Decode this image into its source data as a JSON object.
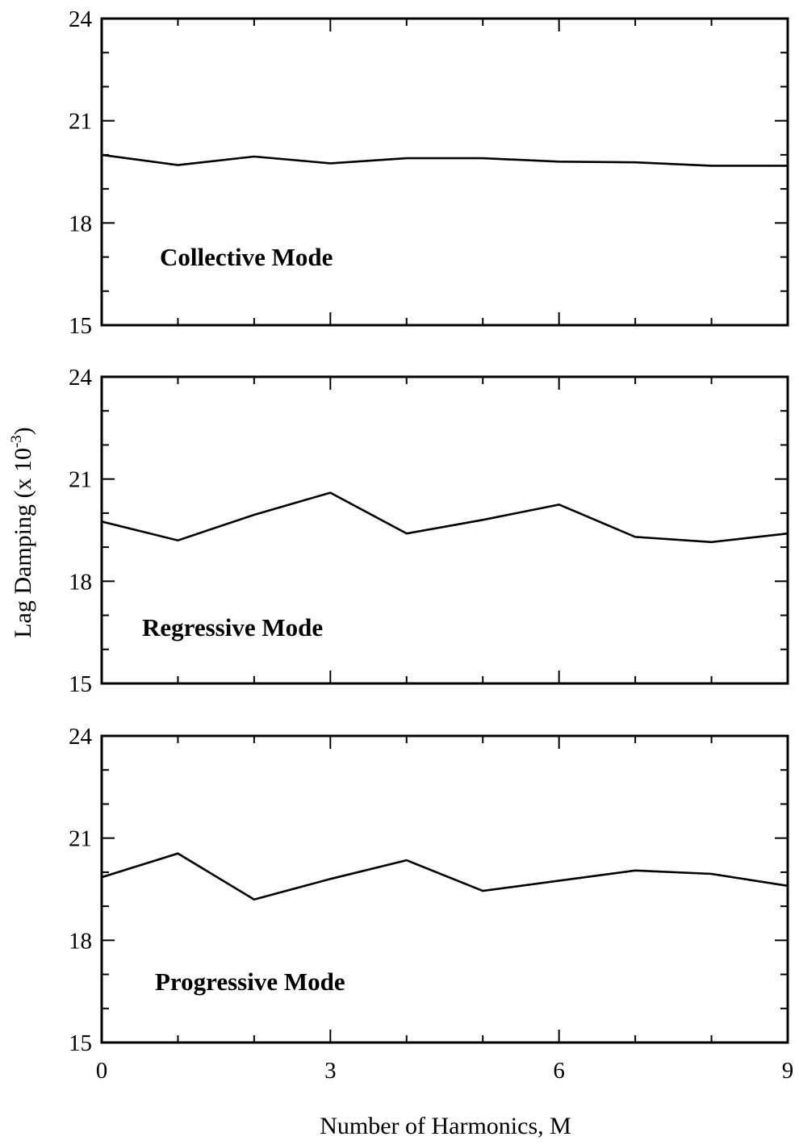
{
  "chart_data": {
    "type": "line",
    "xlabel": "Number of Harmonics, M",
    "ylabel": "Lag Damping (x 10",
    "ylabel_exponent": "-3",
    "ylabel_close": ")",
    "xlim": [
      0,
      9
    ],
    "ylim": [
      15,
      24
    ],
    "x_ticks": [
      "0",
      "3",
      "6",
      "9"
    ],
    "y_ticks": [
      "15",
      "18",
      "21",
      "24"
    ],
    "x_minor_step": 1,
    "y_minor_step": 1,
    "grid": false,
    "panels": [
      {
        "label": "Collective Mode",
        "x": [
          0,
          1,
          2,
          3,
          4,
          5,
          6,
          7,
          8,
          9
        ],
        "y": [
          20.0,
          19.7,
          19.95,
          19.75,
          19.9,
          19.9,
          19.8,
          19.78,
          19.68,
          19.68
        ]
      },
      {
        "label": "Regressive Mode",
        "x": [
          0,
          1,
          2,
          3,
          4,
          5,
          6,
          7,
          8,
          9
        ],
        "y": [
          19.75,
          19.2,
          19.95,
          20.6,
          19.4,
          19.8,
          20.25,
          19.3,
          19.15,
          19.4
        ]
      },
      {
        "label": "Progressive Mode",
        "x": [
          0,
          1,
          2,
          3,
          4,
          5,
          6,
          7,
          8,
          9
        ],
        "y": [
          19.85,
          20.55,
          19.2,
          19.8,
          20.35,
          19.45,
          19.75,
          20.05,
          19.95,
          19.6
        ]
      }
    ]
  }
}
